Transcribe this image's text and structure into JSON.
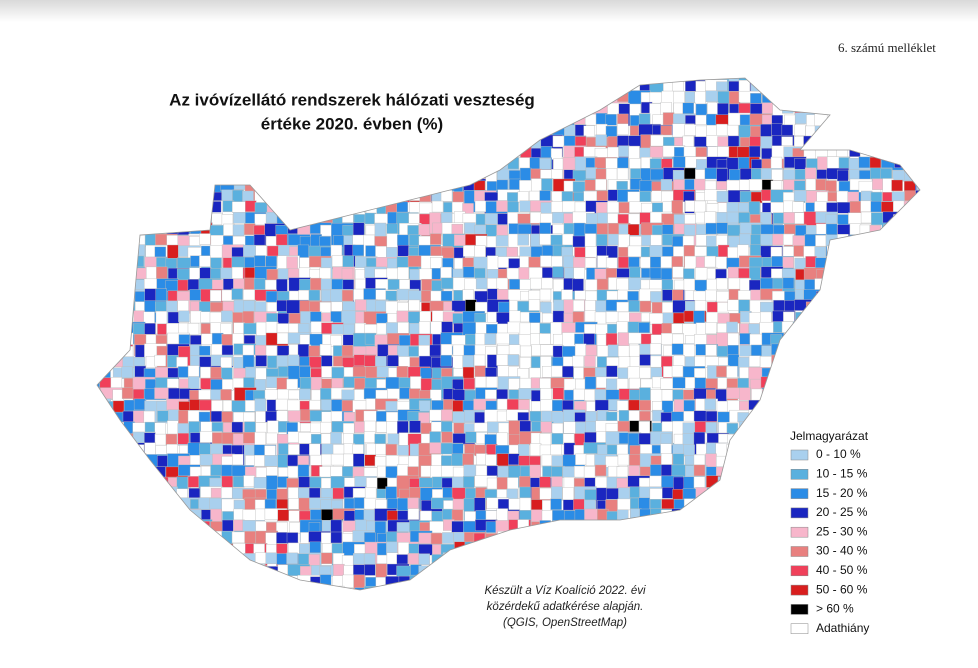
{
  "header": {
    "annex": "6.   számú melléklet"
  },
  "title": [
    "Az ivóvízellátó rendszerek hálózati veszteség",
    "értéke 2020. évben (%)"
  ],
  "legend": {
    "title": "Jelmagyarázat",
    "items": [
      {
        "label": "0 - 10 %",
        "color": "#a9d0ee"
      },
      {
        "label": "10 - 15 %",
        "color": "#5ab0de"
      },
      {
        "label": "15 - 20 %",
        "color": "#2b8ce6"
      },
      {
        "label": "20 - 25 %",
        "color": "#1a26c0"
      },
      {
        "label": "25 - 30 %",
        "color": "#f7b6cb"
      },
      {
        "label": "30 - 40 %",
        "color": "#e8807f"
      },
      {
        "label": "40 - 50 %",
        "color": "#f0405a"
      },
      {
        "label": "50 - 60 %",
        "color": "#d81e1e"
      },
      {
        "label": "> 60 %",
        "color": "#000000"
      },
      {
        "label": "Adathiány",
        "color": "#ffffff"
      }
    ]
  },
  "source": [
    "Készült a Víz Koalíció 2022. évi",
    "közérdekű adatkérése alapján.",
    "(QGIS, OpenStreetMap)"
  ]
}
